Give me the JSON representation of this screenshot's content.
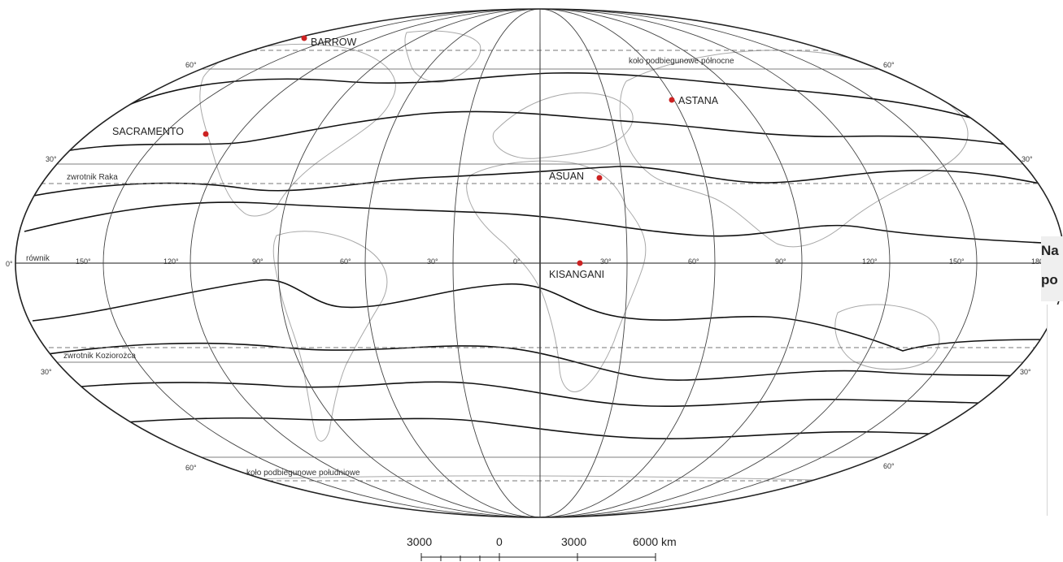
{
  "map": {
    "cities": [
      {
        "name": "BARROW",
        "key": "barrow"
      },
      {
        "name": "ASTANA",
        "key": "astana"
      },
      {
        "name": "SACRAMENTO",
        "key": "sacramento"
      },
      {
        "name": "ASUAN",
        "key": "asuan"
      },
      {
        "name": "KISANGANI",
        "key": "kisangani"
      }
    ],
    "special_lines": {
      "arctic_circle": "koło podbiegunowe północne",
      "tropic_of_cancer": "zwrotnik Raka",
      "equator": "równik",
      "tropic_of_capricorn": "zwrotnik Koziorożca",
      "antarctic_circle": "koło podbiegunowe południowe"
    },
    "latitude_labels": {
      "n60_left": "60°",
      "n60_right": "60°",
      "n30_left": "30°",
      "n30_right": "30°",
      "eq_left": "0°",
      "s30_left": "30°",
      "s30_right": "30°",
      "s60_left": "60°",
      "s60_right": "60°"
    },
    "longitude_labels": {
      "w150": "150°",
      "w120": "120°",
      "w90": "90°",
      "w60": "60°",
      "w30": "30°",
      "zero": "0°",
      "e30": "30°",
      "e60": "60°",
      "e90": "90°",
      "e120": "120°",
      "e150": "150°",
      "e180": "180°"
    },
    "scale_bar": {
      "labels": [
        "3000",
        "0",
        "3000",
        "6000 km"
      ]
    },
    "colors": {
      "city_marker": "#cc2222",
      "grid": "#444444",
      "coast": "#a8a8a8",
      "isoline": "#111111"
    }
  },
  "cut_text": {
    "line1": "Na",
    "line2": "po"
  }
}
